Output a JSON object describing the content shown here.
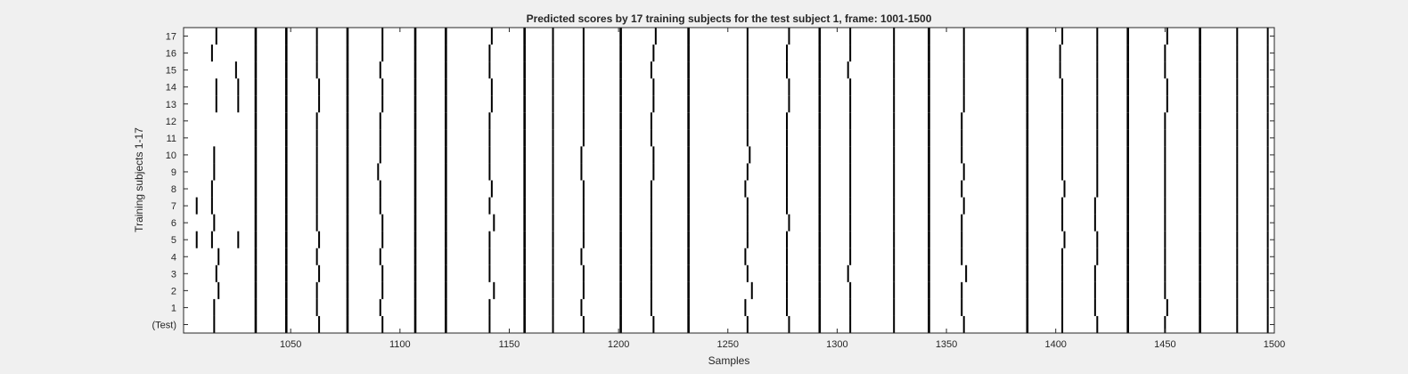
{
  "figure": {
    "background": "#f0f0f0",
    "axes_background": "#ffffff",
    "mark_color": "#000000"
  },
  "chart_data": {
    "type": "raster",
    "title": "Predicted scores by 17 training subjects for the test subject 1, frame: 1001-1500",
    "xlabel": "Samples",
    "ylabel": "Training subjects 1-17",
    "xlim": [
      1001,
      1500
    ],
    "xticks": [
      1050,
      1100,
      1150,
      1200,
      1250,
      1300,
      1350,
      1400,
      1450,
      1500
    ],
    "yticklabels": [
      "(Test)",
      "1",
      "2",
      "3",
      "4",
      "5",
      "6",
      "7",
      "8",
      "9",
      "10",
      "11",
      "12",
      "13",
      "14",
      "15",
      "16",
      "17"
    ],
    "common_events": [
      1034,
      1048,
      1076,
      1107,
      1121,
      1157,
      1201,
      1232,
      1292,
      1342,
      1387,
      1433,
      1466
    ],
    "rows": [
      {
        "label": "(Test)",
        "events": [
          1015,
          1063,
          1092,
          1141,
          1170,
          1184,
          1216,
          1259,
          1278,
          1306,
          1326,
          1358,
          1403,
          1419,
          1450,
          1483,
          1497
        ]
      },
      {
        "label": "1",
        "events": [
          1015,
          1062,
          1091,
          1141,
          1170,
          1183,
          1215,
          1258,
          1277,
          1306,
          1326,
          1357,
          1403,
          1418,
          1451,
          1483,
          1497
        ]
      },
      {
        "label": "2",
        "events": [
          1017,
          1062,
          1092,
          1143,
          1170,
          1184,
          1215,
          1261,
          1277,
          1306,
          1326,
          1357,
          1403,
          1418,
          1450,
          1483,
          1497
        ]
      },
      {
        "label": "3",
        "events": [
          1016,
          1063,
          1092,
          1141,
          1170,
          1184,
          1215,
          1259,
          1277,
          1305,
          1326,
          1359,
          1403,
          1418,
          1450,
          1483,
          1497
        ]
      },
      {
        "label": "4",
        "events": [
          1017,
          1062,
          1091,
          1141,
          1170,
          1183,
          1215,
          1258,
          1277,
          1306,
          1326,
          1357,
          1403,
          1419,
          1450,
          1483,
          1497
        ]
      },
      {
        "label": "5",
        "events": [
          1007,
          1014,
          1026,
          1063,
          1092,
          1141,
          1170,
          1184,
          1215,
          1259,
          1277,
          1306,
          1326,
          1357,
          1404,
          1419,
          1450,
          1483,
          1497
        ]
      },
      {
        "label": "6",
        "events": [
          1015,
          1062,
          1092,
          1143,
          1170,
          1184,
          1215,
          1259,
          1278,
          1306,
          1326,
          1357,
          1403,
          1418,
          1450,
          1483,
          1497
        ]
      },
      {
        "label": "7",
        "events": [
          1007,
          1014,
          1062,
          1091,
          1141,
          1170,
          1184,
          1215,
          1259,
          1277,
          1306,
          1326,
          1358,
          1403,
          1418,
          1450,
          1483,
          1497
        ]
      },
      {
        "label": "8",
        "events": [
          1014,
          1062,
          1091,
          1142,
          1170,
          1184,
          1215,
          1258,
          1277,
          1306,
          1326,
          1357,
          1404,
          1419,
          1450,
          1483,
          1497
        ]
      },
      {
        "label": "9",
        "events": [
          1015,
          1062,
          1090,
          1141,
          1170,
          1183,
          1216,
          1259,
          1277,
          1306,
          1326,
          1358,
          1403,
          1419,
          1450,
          1483,
          1497
        ]
      },
      {
        "label": "10",
        "events": [
          1015,
          1062,
          1091,
          1141,
          1170,
          1183,
          1216,
          1260,
          1277,
          1306,
          1326,
          1357,
          1403,
          1419,
          1450,
          1483,
          1497
        ]
      },
      {
        "label": "11",
        "events": [
          1062,
          1091,
          1141,
          1170,
          1184,
          1215,
          1259,
          1277,
          1306,
          1326,
          1357,
          1403,
          1419,
          1450,
          1483,
          1497
        ]
      },
      {
        "label": "12",
        "events": [
          1062,
          1091,
          1141,
          1170,
          1184,
          1215,
          1259,
          1277,
          1306,
          1326,
          1357,
          1403,
          1419,
          1450,
          1483,
          1497
        ]
      },
      {
        "label": "13",
        "events": [
          1016,
          1026,
          1063,
          1092,
          1142,
          1170,
          1184,
          1216,
          1259,
          1278,
          1306,
          1326,
          1358,
          1403,
          1419,
          1451,
          1483,
          1497
        ]
      },
      {
        "label": "14",
        "events": [
          1016,
          1026,
          1063,
          1092,
          1142,
          1170,
          1184,
          1216,
          1259,
          1278,
          1306,
          1326,
          1358,
          1403,
          1419,
          1451,
          1483,
          1497
        ]
      },
      {
        "label": "15",
        "events": [
          1025,
          1062,
          1091,
          1141,
          1170,
          1184,
          1215,
          1259,
          1277,
          1305,
          1326,
          1358,
          1402,
          1419,
          1450,
          1483,
          1497
        ]
      },
      {
        "label": "16",
        "events": [
          1014,
          1062,
          1092,
          1141,
          1170,
          1184,
          1216,
          1259,
          1277,
          1306,
          1326,
          1358,
          1402,
          1419,
          1450,
          1483,
          1497
        ]
      },
      {
        "label": "17",
        "events": [
          1016,
          1062,
          1092,
          1142,
          1170,
          1184,
          1217,
          1259,
          1278,
          1306,
          1326,
          1358,
          1403,
          1419,
          1451,
          1483,
          1497
        ]
      }
    ]
  }
}
